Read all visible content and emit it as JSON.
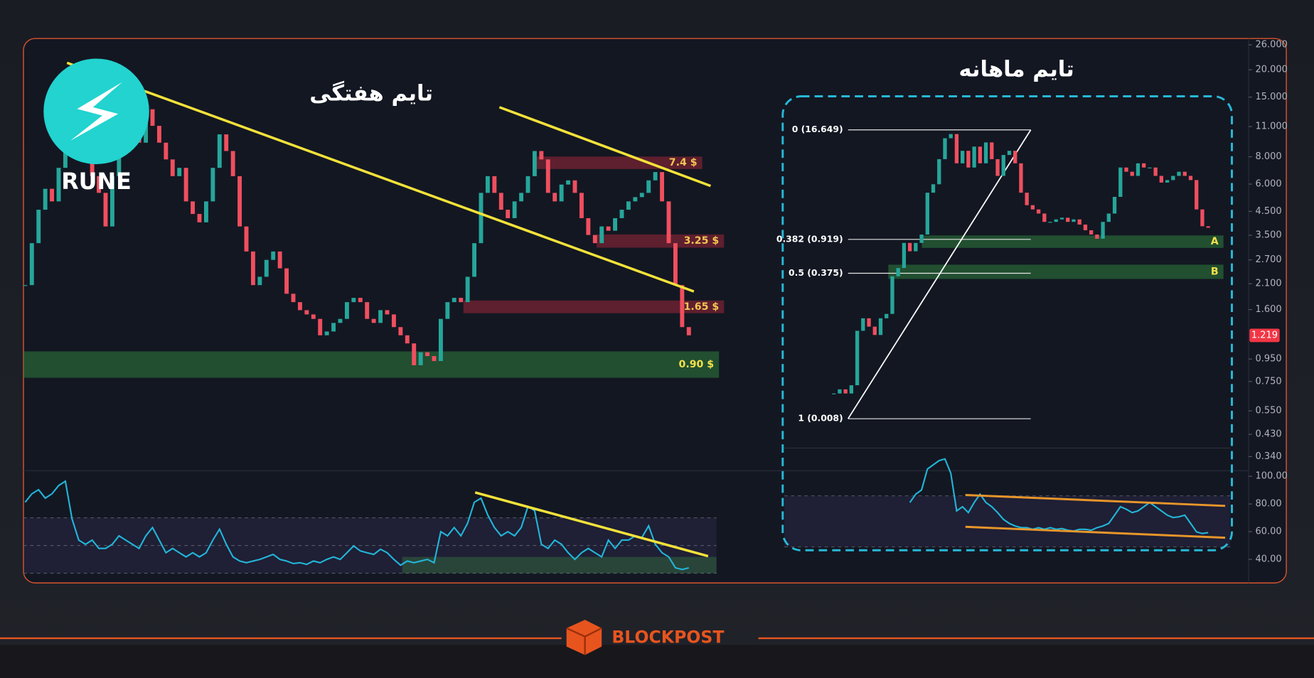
{
  "brand": {
    "coin": "RUNE",
    "footer": "BLOCKPOST"
  },
  "chart_data": [
    {
      "type": "candlestick",
      "title": "تایم هفتگی",
      "log_scale": true,
      "up_color": "#26a69a",
      "down_color": "#ef4f5f",
      "closes": [
        2.07,
        3.22,
        4.58,
        5.71,
        5.0,
        7.12,
        8.88,
        10.13,
        7.78,
        8.88,
        6.52,
        5.47,
        3.84,
        6.52,
        8.5,
        10.13,
        11.08,
        9.28,
        13.2,
        11.08,
        9.28,
        7.78,
        6.52,
        7.12,
        5.0,
        4.38,
        4.01,
        5.0,
        7.12,
        10.13,
        8.5,
        6.52,
        3.84,
        2.95,
        2.07,
        2.26,
        2.7,
        2.95,
        2.47,
        1.89,
        1.73,
        1.59,
        1.52,
        1.45,
        1.22,
        1.27,
        1.39,
        1.45,
        1.73,
        1.81,
        1.73,
        1.45,
        1.39,
        1.59,
        1.52,
        1.33,
        1.22,
        1.12,
        0.89,
        1.02,
        0.98,
        0.93,
        1.45,
        1.73,
        1.81,
        1.73,
        2.26,
        3.22,
        5.47,
        6.52,
        5.47,
        4.58,
        4.19,
        5.0,
        5.47,
        6.52,
        8.5,
        7.78,
        5.47,
        5.0,
        5.97,
        6.24,
        5.47,
        4.19,
        3.51,
        3.22,
        3.84,
        3.67,
        4.19,
        4.58,
        5.0,
        5.23,
        5.47,
        6.24,
        6.81,
        5.0,
        3.22,
        2.07,
        1.33,
        1.22
      ],
      "ylim": [
        0.293,
        27.8
      ],
      "yticks": [
        {
          "value": 26,
          "label": "26.000"
        },
        {
          "value": 20,
          "label": "20.000"
        },
        {
          "value": 15,
          "label": "15.000"
        },
        {
          "value": 11,
          "label": "11.000"
        },
        {
          "value": 8,
          "label": "8.000"
        },
        {
          "value": 6,
          "label": "6.000"
        },
        {
          "value": 4.5,
          "label": "4.500"
        },
        {
          "value": 3.5,
          "label": "3.500"
        },
        {
          "value": 2.7,
          "label": "2.700"
        },
        {
          "value": 2.1,
          "label": "2.100"
        },
        {
          "value": 1.6,
          "label": "1.600"
        },
        {
          "value": 0.95,
          "label": "0.950"
        },
        {
          "value": 0.75,
          "label": "0.750"
        },
        {
          "value": 0.55,
          "label": "0.550"
        },
        {
          "value": 0.43,
          "label": "0.430"
        },
        {
          "value": 0.34,
          "label": "0.340"
        }
      ],
      "last_price": 1.219,
      "zones": [
        {
          "label": "7.4 $",
          "low": 7.03,
          "high": 8.02,
          "kind": "resistance"
        },
        {
          "label": "3.25 $",
          "low": 3.07,
          "high": 3.53,
          "kind": "resistance"
        },
        {
          "label": "1.65 $",
          "low": 1.54,
          "high": 1.76,
          "kind": "resistance"
        },
        {
          "label": "0.90 $",
          "low": 0.78,
          "high": 1.03,
          "kind": "support"
        }
      ],
      "rsi": {
        "color": "#22b5d8",
        "values": [
          81.2,
          87.3,
          90.3,
          84.2,
          87.3,
          93.3,
          96.4,
          69.1,
          53.9,
          50.9,
          53.9,
          47.9,
          47.9,
          50.9,
          57.0,
          53.9,
          50.9,
          47.9,
          57.0,
          63.0,
          53.9,
          44.8,
          47.9,
          44.8,
          41.8,
          44.8,
          41.8,
          44.8,
          53.9,
          61.8,
          50.9,
          41.8,
          38.8,
          37.6,
          38.8,
          40,
          41.8,
          43.6,
          40,
          38.8,
          37.0,
          37.6,
          36.4,
          38.8,
          37.6,
          40,
          41.8,
          40,
          44.8,
          49.7,
          46.1,
          44.8,
          43.6,
          47.3,
          44.8,
          40,
          35.8,
          38.8,
          37.6,
          38.8,
          40,
          37.6,
          60.0,
          57.0,
          63.0,
          57.0,
          66.1,
          81.2,
          84.2,
          72.1,
          63.0,
          57.0,
          60.0,
          57.0,
          63.0,
          78.2,
          75.1,
          50.9,
          47.9,
          53.9,
          50.9,
          44.8,
          40,
          44.8,
          47.9,
          44.8,
          41.8,
          53.9,
          47.9,
          53.9,
          53.9,
          57.0,
          55.8,
          64.2,
          50.9,
          44.8,
          41.8,
          33.9,
          32.7,
          33.9
        ],
        "ylim": [
          23,
          104
        ],
        "yticks": [
          {
            "value": 100,
            "label": "100.00"
          },
          {
            "value": 80,
            "label": "80.00"
          },
          {
            "value": 60,
            "label": "60.00"
          },
          {
            "value": 40,
            "label": "40.00"
          }
        ],
        "levels": [
          30,
          50,
          70
        ],
        "zone": {
          "low": 30,
          "high": 41.8
        }
      }
    },
    {
      "type": "candlestick",
      "title": "تایم ماهانه",
      "log_scale": true,
      "up_color": "#26a69a",
      "down_color": "#ef4f5f",
      "closes": [
        0.0156,
        0.0174,
        0.0156,
        0.0194,
        0.0819,
        0.114,
        0.0914,
        0.0733,
        0.114,
        0.128,
        0.346,
        0.431,
        0.837,
        0.671,
        0.837,
        1.045,
        3.16,
        3.95,
        7.67,
        13.34,
        14.9,
        6.87,
        9.57,
        6.15,
        10.69,
        6.87,
        11.94,
        7.67,
        4.93,
        8.57,
        9.57,
        6.87,
        3.16,
        2.27,
        2.03,
        1.82,
        1.46,
        1.46,
        1.56,
        1.63,
        1.46,
        1.56,
        1.36,
        1.17,
        1.045,
        0.935,
        1.46,
        1.82,
        2.83,
        6.15,
        5.5,
        4.93,
        6.87,
        6.15,
        6.15,
        4.93,
        4.13,
        4.41,
        4.93,
        5.5,
        4.93,
        4.41,
        2.03,
        1.3,
        1.25
      ],
      "ylim": [
        0.00368,
        29
      ],
      "fib_levels": [
        {
          "value": 16.649,
          "label": "0 (16.649)"
        },
        {
          "value": 0.919,
          "label": "0.382 (0.919)"
        },
        {
          "value": 0.375,
          "label": "0.5 (0.375)"
        },
        {
          "value": 0.008,
          "label": "1 (0.008)"
        }
      ],
      "zones": [
        {
          "label": "A",
          "low": 0.734,
          "high": 1.02,
          "kind": "support"
        },
        {
          "label": "B",
          "low": 0.323,
          "high": 0.471,
          "kind": "support"
        }
      ],
      "rsi": {
        "color": "#22b5d8",
        "values": [
          null,
          null,
          null,
          null,
          null,
          null,
          null,
          null,
          null,
          null,
          null,
          null,
          null,
          64.8,
          71.3,
          74.6,
          91.0,
          94.3,
          97.6,
          98.9,
          87.7,
          58.2,
          61.5,
          56.9,
          64.8,
          71.3,
          64.8,
          61.5,
          56.9,
          51.6,
          48.4,
          46.4,
          45.1,
          45.1,
          43.8,
          45.1,
          43.8,
          45.1,
          43.8,
          44.4,
          43.1,
          42.5,
          43.8,
          43.8,
          43.1,
          45.1,
          46.4,
          48.4,
          54.9,
          61.5,
          59.5,
          56.9,
          58.2,
          61.5,
          64.8,
          61.5,
          58.2,
          54.9,
          53.0,
          53.6,
          54.9,
          48.4,
          41.8,
          40.5,
          41.2
        ],
        "ylim": [
          28.7,
          107.4
        ],
        "levels": [
          30,
          70
        ]
      }
    }
  ]
}
